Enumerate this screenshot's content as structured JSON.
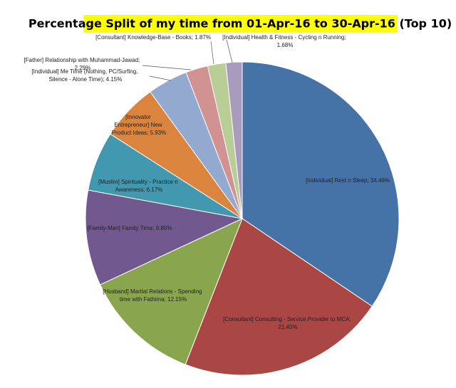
{
  "chart_data": {
    "type": "pie",
    "title": "Percentage Split of my time from 01-Apr-16 to 30-Apr-16 (Top 10)",
    "labels": [
      "[Individual] Rest n Sleep; 34.46%",
      "[Consultant] Consulting - Service Provider to MCA; 21.45%",
      "[Husband] Marital Relations - Spending time with Fathima; 12.15%",
      "[Family-Man] Family Time; 9.85%",
      "[Muslim] Spirituality - Practice n Awareness; 6.17%",
      "[Innovator Entrepreneur] New Product Ideas; 5.93%",
      "[Individual] Me Time (Nothing, PC/Surfing, Silence - Alone Time); 4.15%",
      "[Father] Relationship with Muhammad-Jawad; 2.29%",
      "[Consultant] Knowledge-Base - Books; 1.87%",
      "[Individual] Health & Fitness - Cycling n Running; 1.68%"
    ],
    "values": [
      34.46,
      21.45,
      12.15,
      9.85,
      6.17,
      5.93,
      4.15,
      2.29,
      1.87,
      1.68
    ],
    "colors": [
      "#4572a7",
      "#aa4643",
      "#89a54e",
      "#71588f",
      "#4198af",
      "#db843d",
      "#93a9cf",
      "#d19392",
      "#b9cd96",
      "#a99bbd"
    ]
  }
}
